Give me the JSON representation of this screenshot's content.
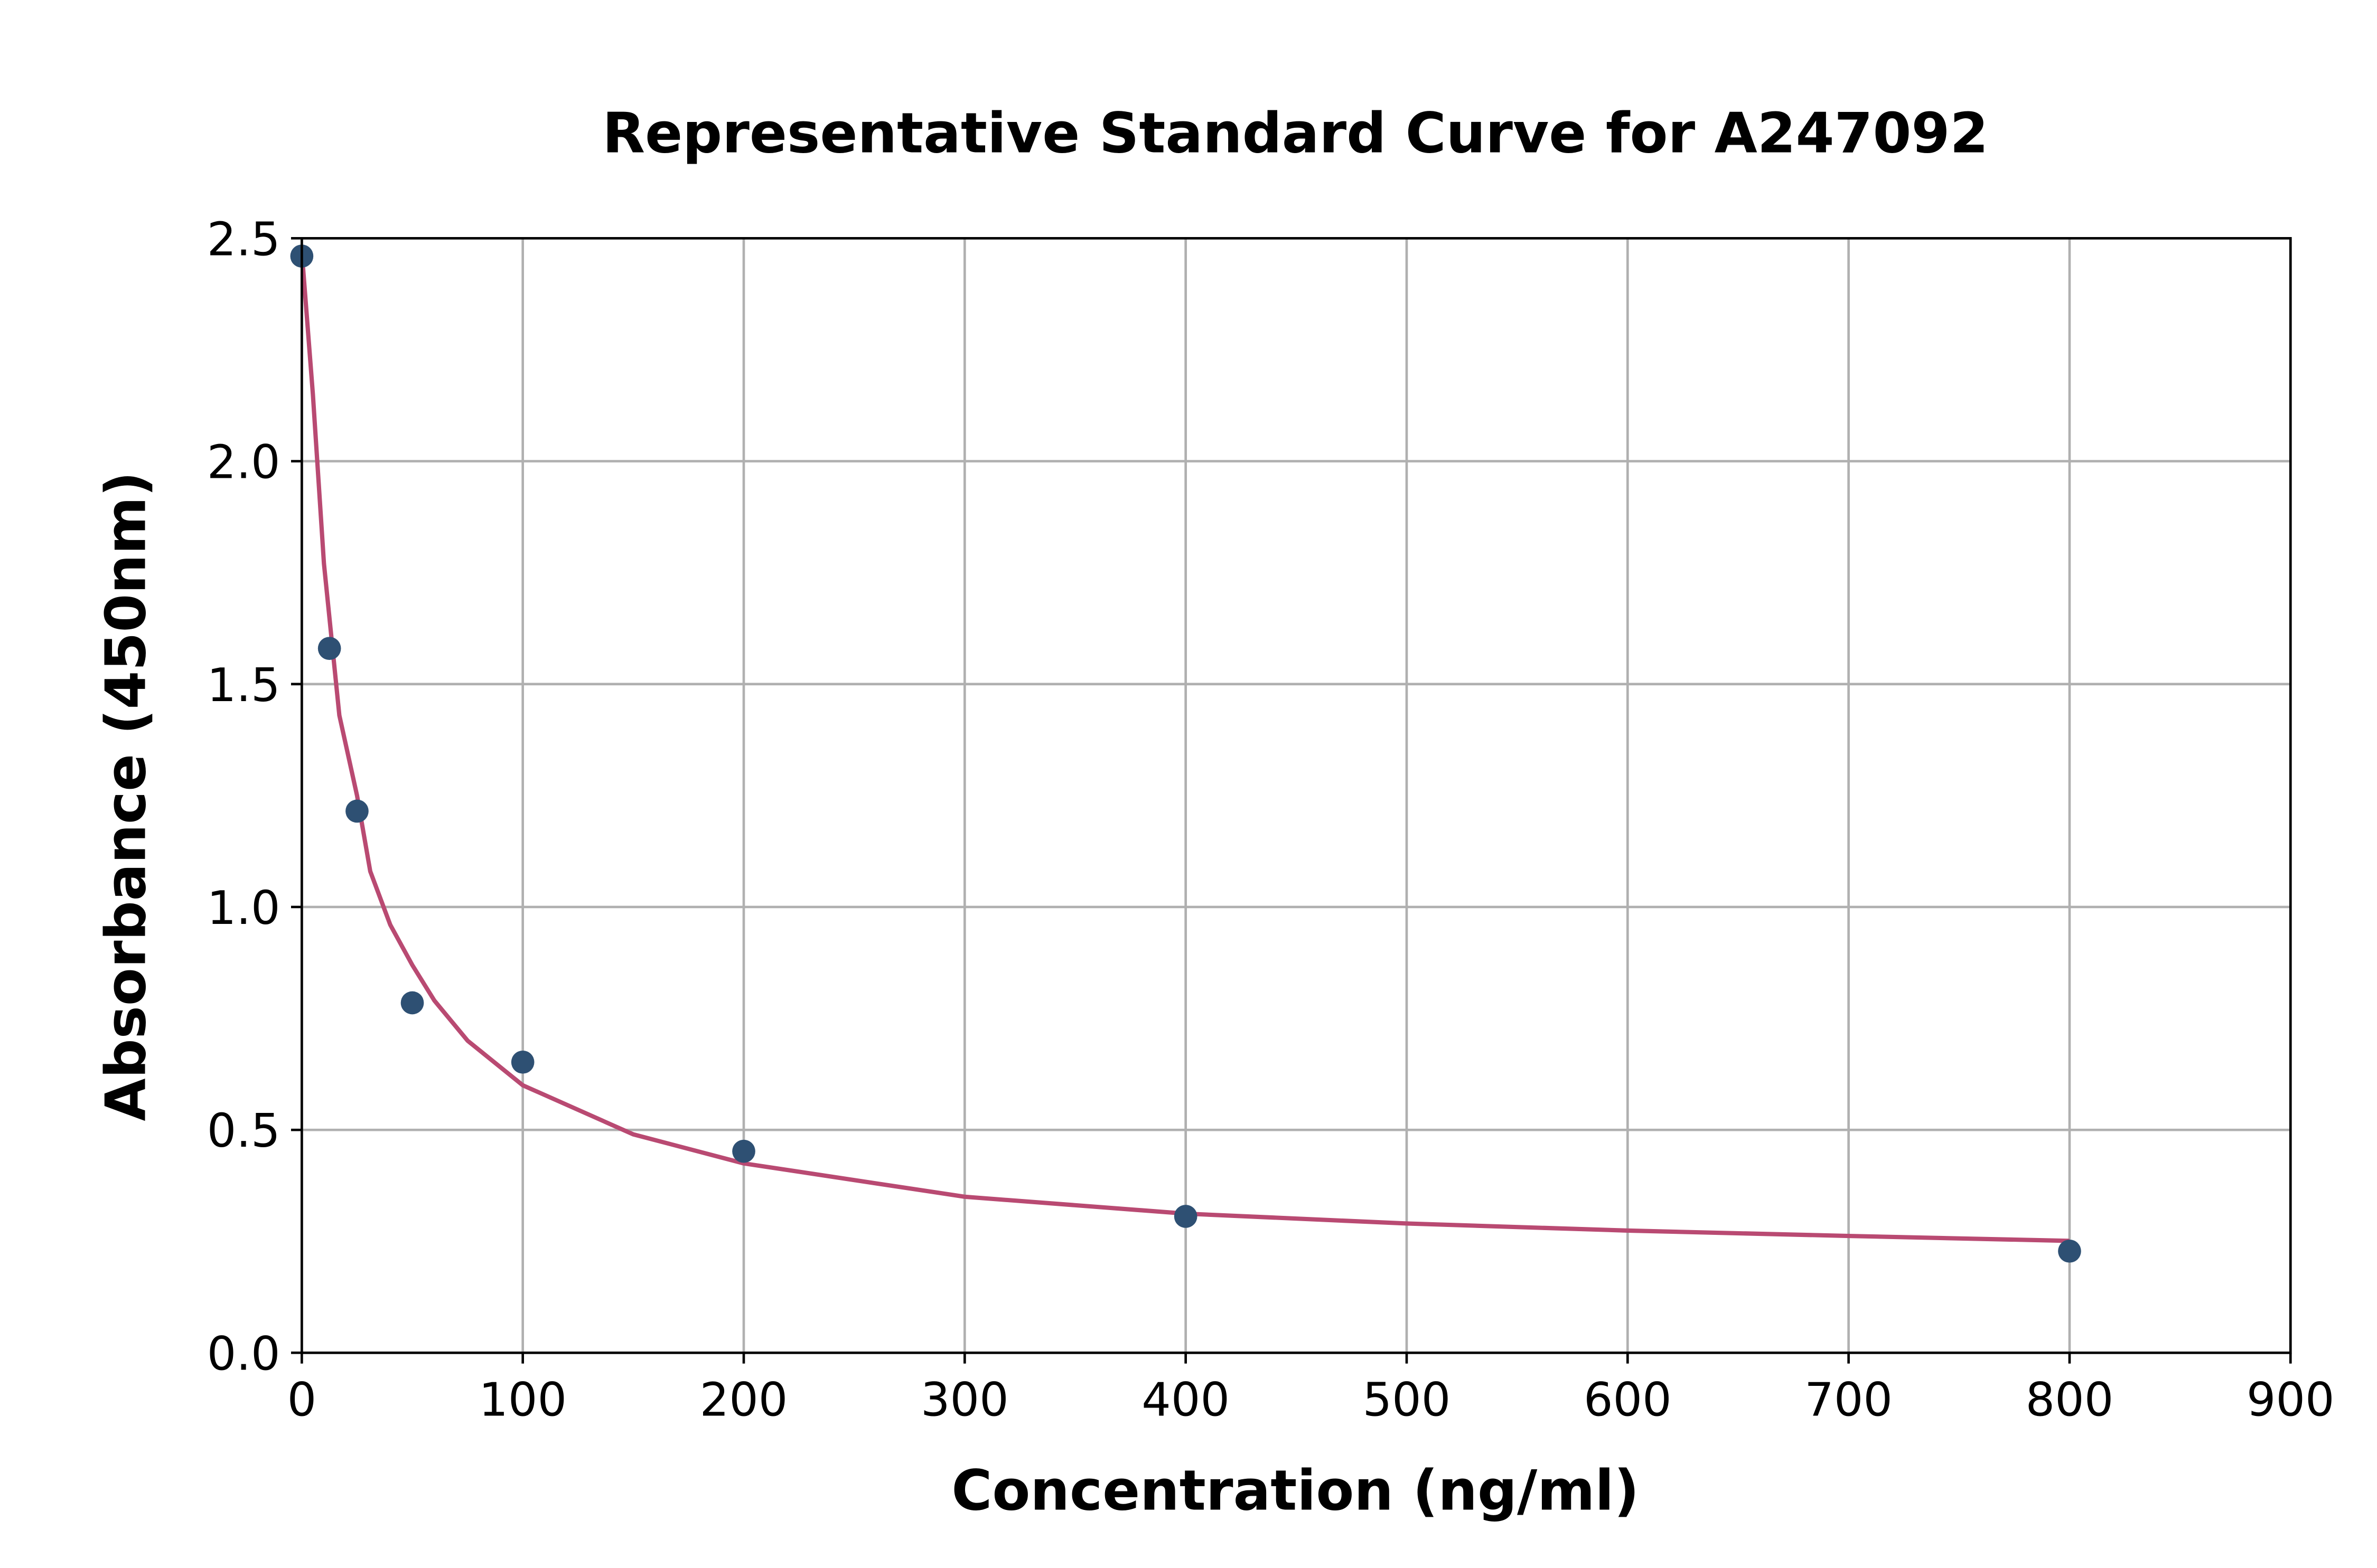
{
  "chart_data": {
    "type": "scatter",
    "title": "Representative Standard Curve for A247092",
    "xlabel": "Concentration (ng/ml)",
    "ylabel": "Absorbance (450nm)",
    "xlim": [
      0,
      900
    ],
    "ylim": [
      0,
      2.5
    ],
    "xticks": [
      "0",
      "100",
      "200",
      "300",
      "400",
      "500",
      "600",
      "700",
      "800",
      "900"
    ],
    "yticks": [
      "0.0",
      "0.5",
      "1.0",
      "1.5",
      "2.0",
      "2.5"
    ],
    "grid": true,
    "points": {
      "x": [
        0,
        12.5,
        25,
        50,
        100,
        200,
        400,
        800
      ],
      "y": [
        2.46,
        1.58,
        1.215,
        0.785,
        0.652,
        0.452,
        0.306,
        0.228
      ],
      "color": "#2e5073"
    },
    "fit_curve": {
      "x": [
        0,
        5,
        10,
        17,
        25,
        31,
        40,
        50,
        60,
        75,
        100,
        150,
        200,
        300,
        400,
        500,
        600,
        700,
        800
      ],
      "y": [
        2.47,
        2.15,
        1.77,
        1.43,
        1.25,
        1.08,
        0.96,
        0.87,
        0.79,
        0.7,
        0.6,
        0.49,
        0.425,
        0.35,
        0.312,
        0.29,
        0.274,
        0.262,
        0.251
      ],
      "color": "#b94a72"
    }
  }
}
